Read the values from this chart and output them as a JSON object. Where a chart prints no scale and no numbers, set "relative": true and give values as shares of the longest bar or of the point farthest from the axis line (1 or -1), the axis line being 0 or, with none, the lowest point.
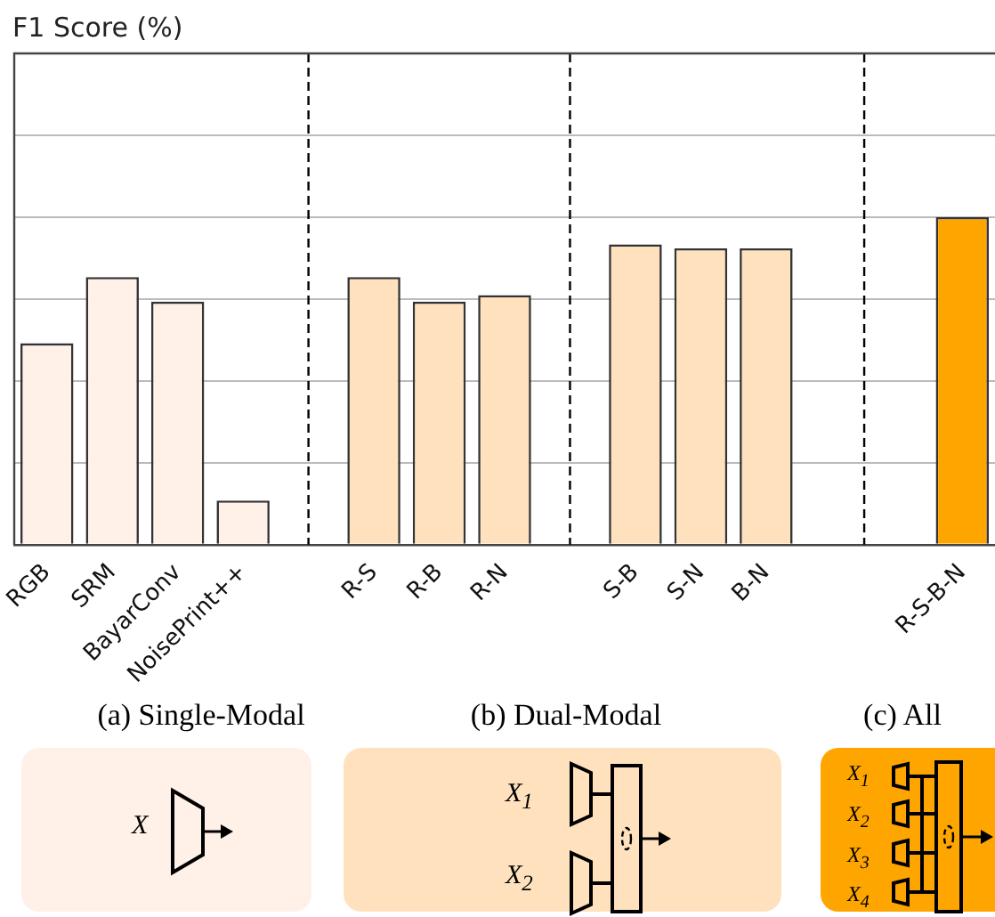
{
  "chart_data": {
    "type": "bar",
    "relative": true,
    "grid": true,
    "categories": [
      "RGB",
      "SRM",
      "BayarConv",
      "NoisePrint++",
      null,
      "R-S",
      "R-B",
      "R-N",
      null,
      "S-B",
      "S-N",
      "B-N",
      null,
      null,
      "R-S-B-N"
    ],
    "values": [
      0.615,
      0.817,
      0.742,
      0.135,
      null,
      0.817,
      0.742,
      0.762,
      null,
      0.917,
      0.905,
      0.905,
      null,
      null,
      1
    ],
    "colors": [
      "#fff0e8",
      "#fff0e8",
      "#fff0e8",
      "#fff0e8",
      "#ffffff",
      "#ffe2bd",
      "#ffe2bd",
      "#ffe2bd",
      "#ffffff",
      "#ffe2bd",
      "#ffe2bd",
      "#ffe2bd",
      "#ffffff",
      "#ffffff",
      "#ffa500"
    ],
    "annotations": [
      "F1 Score (%)",
      "(a) Single-Modal",
      "(b) Dual-Modal",
      "(c) All",
      "X",
      "X$_{1}$",
      "X$_{2}$",
      "X$_{1}$",
      "X$_{2}$",
      "X$_{3}$",
      "X$_{4}$"
    ]
  }
}
